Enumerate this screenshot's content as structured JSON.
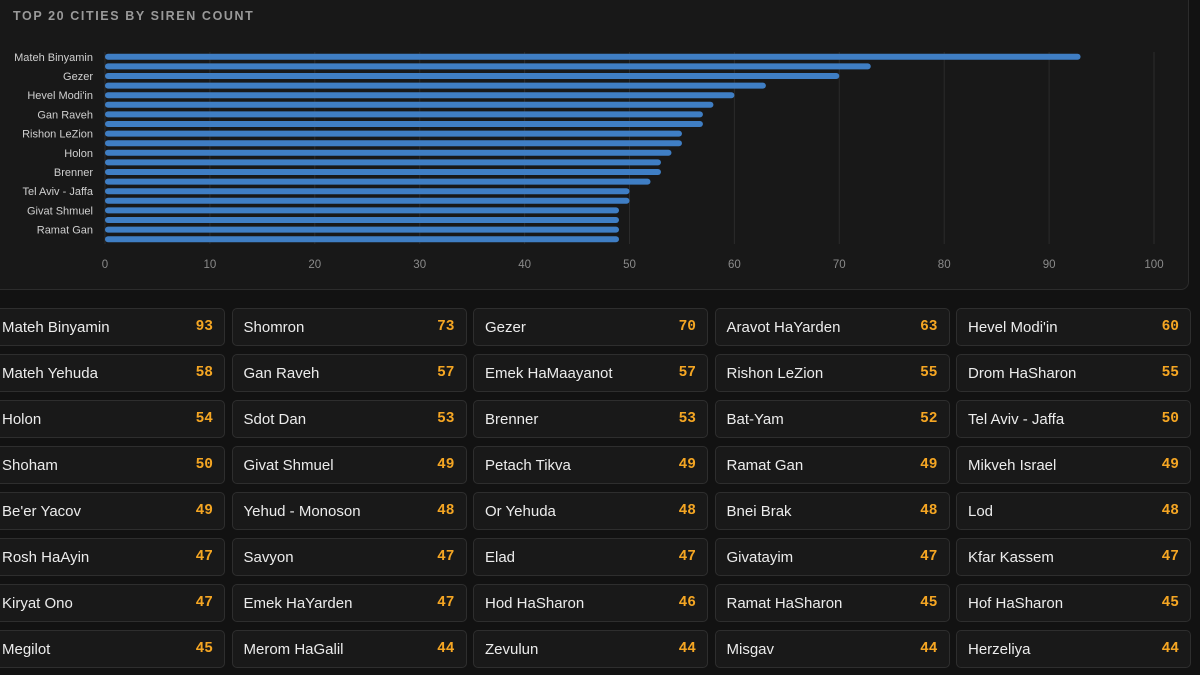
{
  "title": "TOP 20 CITIES BY SIREN COUNT",
  "colors": {
    "bar": "#3f7ec4",
    "count": "#f5a623",
    "background": "#121212"
  },
  "chart_data": {
    "type": "bar",
    "orientation": "horizontal",
    "categories": [
      "Mateh Binyamin",
      "Shomron",
      "Gezer",
      "Aravot HaYarden",
      "Hevel Modi'in",
      "Mateh Yehuda",
      "Gan Raveh",
      "Emek HaMaayanot",
      "Rishon LeZion",
      "Drom HaSharon",
      "Holon",
      "Sdot Dan",
      "Brenner",
      "Bat-Yam",
      "Tel Aviv - Jaffa",
      "Shoham",
      "Givat Shmuel",
      "Petach Tikva",
      "Ramat Gan",
      "Mikveh Israel"
    ],
    "tick_labels_shown": [
      "Mateh Binyamin",
      "",
      "Gezer",
      "",
      "Hevel Modi'in",
      "",
      "Gan Raveh",
      "",
      "Rishon LeZion",
      "",
      "Holon",
      "",
      "Brenner",
      "",
      "Tel Aviv - Jaffa",
      "",
      "Givat Shmuel",
      "",
      "Ramat Gan",
      ""
    ],
    "values": [
      93,
      73,
      70,
      63,
      60,
      58,
      57,
      57,
      55,
      55,
      54,
      53,
      53,
      52,
      50,
      50,
      49,
      49,
      49,
      49
    ],
    "xlim": [
      0,
      100
    ],
    "xticks": [
      0,
      10,
      20,
      30,
      40,
      50,
      60,
      70,
      80,
      90,
      100
    ],
    "grid": true,
    "legend": "none"
  },
  "cities": [
    {
      "name": "Mateh Binyamin",
      "count": "93"
    },
    {
      "name": "Shomron",
      "count": "73"
    },
    {
      "name": "Gezer",
      "count": "70"
    },
    {
      "name": "Aravot HaYarden",
      "count": "63"
    },
    {
      "name": "Hevel Modi'in",
      "count": "60"
    },
    {
      "name": "Mateh Yehuda",
      "count": "58"
    },
    {
      "name": "Gan Raveh",
      "count": "57"
    },
    {
      "name": "Emek HaMaayanot",
      "count": "57"
    },
    {
      "name": "Rishon LeZion",
      "count": "55"
    },
    {
      "name": "Drom HaSharon",
      "count": "55"
    },
    {
      "name": "Holon",
      "count": "54"
    },
    {
      "name": "Sdot Dan",
      "count": "53"
    },
    {
      "name": "Brenner",
      "count": "53"
    },
    {
      "name": "Bat-Yam",
      "count": "52"
    },
    {
      "name": "Tel Aviv - Jaffa",
      "count": "50"
    },
    {
      "name": "Shoham",
      "count": "50"
    },
    {
      "name": "Givat Shmuel",
      "count": "49"
    },
    {
      "name": "Petach Tikva",
      "count": "49"
    },
    {
      "name": "Ramat Gan",
      "count": "49"
    },
    {
      "name": "Mikveh Israel",
      "count": "49"
    },
    {
      "name": "Be'er Yacov",
      "count": "49"
    },
    {
      "name": "Yehud - Monoson",
      "count": "48"
    },
    {
      "name": "Or Yehuda",
      "count": "48"
    },
    {
      "name": "Bnei Brak",
      "count": "48"
    },
    {
      "name": "Lod",
      "count": "48"
    },
    {
      "name": "Rosh HaAyin",
      "count": "47"
    },
    {
      "name": "Savyon",
      "count": "47"
    },
    {
      "name": "Elad",
      "count": "47"
    },
    {
      "name": "Givatayim",
      "count": "47"
    },
    {
      "name": "Kfar Kassem",
      "count": "47"
    },
    {
      "name": "Kiryat Ono",
      "count": "47"
    },
    {
      "name": "Emek HaYarden",
      "count": "47"
    },
    {
      "name": "Hod HaSharon",
      "count": "46"
    },
    {
      "name": "Ramat HaSharon",
      "count": "45"
    },
    {
      "name": "Hof HaSharon",
      "count": "45"
    },
    {
      "name": "Megilot",
      "count": "45"
    },
    {
      "name": "Merom HaGalil",
      "count": "44"
    },
    {
      "name": "Zevulun",
      "count": "44"
    },
    {
      "name": "Misgav",
      "count": "44"
    },
    {
      "name": "Herzeliya",
      "count": "44"
    }
  ]
}
